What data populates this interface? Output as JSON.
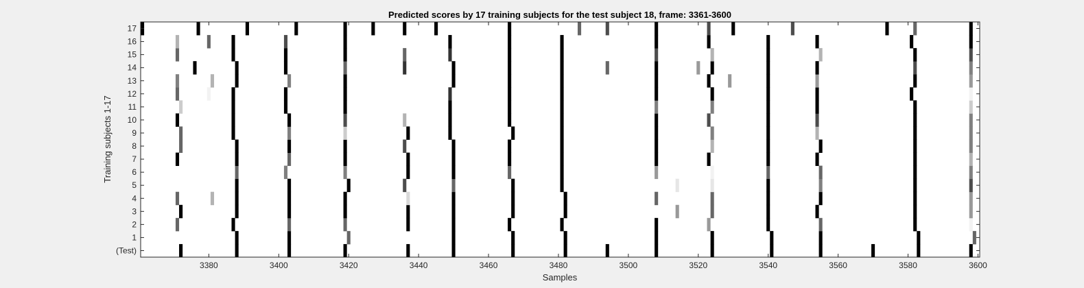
{
  "chart_data": {
    "type": "heatmap",
    "title": "Predicted scores by 17 training subjects for the test subject 18, frame: 3361-3600",
    "xlabel": "Samples",
    "ylabel": "Training subjects 1-17",
    "xlim": [
      3361,
      3600
    ],
    "x_ticks": [
      3380,
      3400,
      3420,
      3440,
      3460,
      3480,
      3500,
      3520,
      3540,
      3560,
      3580,
      3600
    ],
    "rows": [
      "(Test)",
      "1",
      "2",
      "3",
      "4",
      "5",
      "6",
      "7",
      "8",
      "9",
      "10",
      "11",
      "12",
      "13",
      "14",
      "15",
      "16",
      "17"
    ],
    "colormap": "gray",
    "background": "#ffffff",
    "note_value_scale": "0 = white, 1 = black",
    "cells": [
      {
        "row": "(Test)",
        "marks": [
          [
            3372,
            1
          ],
          [
            3388,
            1
          ],
          [
            3403,
            1
          ],
          [
            3419,
            1
          ],
          [
            3437,
            1
          ],
          [
            3450,
            1
          ],
          [
            3467,
            1
          ],
          [
            3482,
            1
          ],
          [
            3494,
            1
          ],
          [
            3508,
            1
          ],
          [
            3524,
            1
          ],
          [
            3541,
            1
          ],
          [
            3555,
            1
          ],
          [
            3570,
            1
          ],
          [
            3583,
            1
          ],
          [
            3598,
            1
          ]
        ]
      },
      {
        "row": "1",
        "marks": [
          [
            3388,
            1
          ],
          [
            3403,
            1
          ],
          [
            3420,
            0.6
          ],
          [
            3450,
            1
          ],
          [
            3467,
            1
          ],
          [
            3482,
            1
          ],
          [
            3508,
            1
          ],
          [
            3524,
            1
          ],
          [
            3541,
            1
          ],
          [
            3555,
            1
          ],
          [
            3583,
            1
          ],
          [
            3599,
            0.6
          ]
        ]
      },
      {
        "row": "2",
        "marks": [
          [
            3371,
            0.6
          ],
          [
            3387,
            1
          ],
          [
            3403,
            0.6
          ],
          [
            3419,
            0.6
          ],
          [
            3437,
            1
          ],
          [
            3450,
            1
          ],
          [
            3466,
            1
          ],
          [
            3481,
            1
          ],
          [
            3508,
            1
          ],
          [
            3523,
            0.4
          ],
          [
            3540,
            1
          ],
          [
            3555,
            0.6
          ],
          [
            3582,
            1
          ],
          [
            3598,
            0.05
          ]
        ]
      },
      {
        "row": "3",
        "marks": [
          [
            3372,
            1
          ],
          [
            3388,
            1
          ],
          [
            3403,
            1
          ],
          [
            3419,
            1
          ],
          [
            3437,
            1
          ],
          [
            3450,
            1
          ],
          [
            3467,
            1
          ],
          [
            3482,
            1
          ],
          [
            3514,
            0.4
          ],
          [
            3524,
            0.6
          ],
          [
            3540,
            1
          ],
          [
            3554,
            1
          ],
          [
            3582,
            1
          ],
          [
            3598,
            0.4
          ]
        ]
      },
      {
        "row": "4",
        "marks": [
          [
            3371,
            0.6
          ],
          [
            3381,
            0.3
          ],
          [
            3388,
            1
          ],
          [
            3403,
            1
          ],
          [
            3419,
            1
          ],
          [
            3437,
            0.15
          ],
          [
            3450,
            1
          ],
          [
            3467,
            1
          ],
          [
            3482,
            1
          ],
          [
            3508,
            0.6
          ],
          [
            3524,
            0.6
          ],
          [
            3540,
            1
          ],
          [
            3555,
            1
          ],
          [
            3582,
            1
          ],
          [
            3598,
            0.4
          ]
        ]
      },
      {
        "row": "5",
        "marks": [
          [
            3388,
            1
          ],
          [
            3403,
            1
          ],
          [
            3420,
            1
          ],
          [
            3436,
            0.7
          ],
          [
            3450,
            0.6
          ],
          [
            3467,
            1
          ],
          [
            3481,
            1
          ],
          [
            3514,
            0.1
          ],
          [
            3524,
            0.1
          ],
          [
            3540,
            1
          ],
          [
            3555,
            0.5
          ],
          [
            3582,
            1
          ],
          [
            3598,
            0.7
          ]
        ]
      },
      {
        "row": "6",
        "marks": [
          [
            3388,
            0.6
          ],
          [
            3402,
            0.5
          ],
          [
            3419,
            0.5
          ],
          [
            3437,
            1
          ],
          [
            3450,
            1
          ],
          [
            3466,
            0.6
          ],
          [
            3481,
            1
          ],
          [
            3508,
            0.4
          ],
          [
            3524,
            0.05
          ],
          [
            3540,
            0.6
          ],
          [
            3555,
            0.6
          ],
          [
            3582,
            1
          ],
          [
            3598,
            0.5
          ]
        ]
      },
      {
        "row": "7",
        "marks": [
          [
            3371,
            1
          ],
          [
            3388,
            1
          ],
          [
            3403,
            0.6
          ],
          [
            3419,
            1
          ],
          [
            3437,
            1
          ],
          [
            3450,
            1
          ],
          [
            3466,
            1
          ],
          [
            3481,
            1
          ],
          [
            3508,
            1
          ],
          [
            3523,
            1
          ],
          [
            3540,
            1
          ],
          [
            3554,
            1
          ],
          [
            3582,
            1
          ],
          [
            3598,
            0.3
          ]
        ]
      },
      {
        "row": "8",
        "marks": [
          [
            3372,
            0.6
          ],
          [
            3388,
            1
          ],
          [
            3403,
            1
          ],
          [
            3419,
            1
          ],
          [
            3436,
            0.7
          ],
          [
            3450,
            1
          ],
          [
            3466,
            1
          ],
          [
            3481,
            1
          ],
          [
            3508,
            1
          ],
          [
            3524,
            0.3
          ],
          [
            3540,
            1
          ],
          [
            3555,
            1
          ],
          [
            3582,
            1
          ],
          [
            3598,
            0.5
          ]
        ]
      },
      {
        "row": "9",
        "marks": [
          [
            3372,
            0.6
          ],
          [
            3387,
            1
          ],
          [
            3403,
            0.5
          ],
          [
            3419,
            0.2
          ],
          [
            3437,
            1
          ],
          [
            3449,
            1
          ],
          [
            3467,
            1
          ],
          [
            3481,
            1
          ],
          [
            3508,
            1
          ],
          [
            3524,
            0.5
          ],
          [
            3540,
            1
          ],
          [
            3554,
            0.3
          ],
          [
            3582,
            1
          ],
          [
            3598,
            0.5
          ]
        ]
      },
      {
        "row": "10",
        "marks": [
          [
            3371,
            1
          ],
          [
            3387,
            1
          ],
          [
            3403,
            1
          ],
          [
            3419,
            0.7
          ],
          [
            3436,
            0.3
          ],
          [
            3449,
            1
          ],
          [
            3466,
            1
          ],
          [
            3481,
            1
          ],
          [
            3508,
            1
          ],
          [
            3523,
            0.7
          ],
          [
            3540,
            1
          ],
          [
            3554,
            0.7
          ],
          [
            3582,
            1
          ],
          [
            3598,
            0.5
          ]
        ]
      },
      {
        "row": "11",
        "marks": [
          [
            3372,
            0.2
          ],
          [
            3387,
            1
          ],
          [
            3402,
            1
          ],
          [
            3419,
            1
          ],
          [
            3449,
            1
          ],
          [
            3466,
            1
          ],
          [
            3481,
            1
          ],
          [
            3508,
            0.5
          ],
          [
            3524,
            0.5
          ],
          [
            3540,
            1
          ],
          [
            3554,
            1
          ],
          [
            3582,
            1
          ],
          [
            3598,
            0.2
          ]
        ]
      },
      {
        "row": "12",
        "marks": [
          [
            3371,
            0.6
          ],
          [
            3380,
            0.05
          ],
          [
            3387,
            1
          ],
          [
            3402,
            1
          ],
          [
            3419,
            1
          ],
          [
            3449,
            0.8
          ],
          [
            3466,
            1
          ],
          [
            3481,
            1
          ],
          [
            3508,
            1
          ],
          [
            3524,
            1
          ],
          [
            3540,
            1
          ],
          [
            3554,
            1
          ],
          [
            3581,
            1
          ],
          [
            3598,
            0.05
          ]
        ]
      },
      {
        "row": "13",
        "marks": [
          [
            3371,
            0.5
          ],
          [
            3381,
            0.3
          ],
          [
            3388,
            1
          ],
          [
            3403,
            0.5
          ],
          [
            3419,
            1
          ],
          [
            3450,
            1
          ],
          [
            3466,
            1
          ],
          [
            3481,
            1
          ],
          [
            3508,
            1
          ],
          [
            3523,
            1
          ],
          [
            3529,
            0.4
          ],
          [
            3540,
            1
          ],
          [
            3554,
            0.4
          ],
          [
            3582,
            1
          ],
          [
            3598,
            0.4
          ]
        ]
      },
      {
        "row": "14",
        "marks": [
          [
            3376,
            1
          ],
          [
            3388,
            1
          ],
          [
            3402,
            1
          ],
          [
            3419,
            0.6
          ],
          [
            3436,
            0.8
          ],
          [
            3450,
            1
          ],
          [
            3466,
            1
          ],
          [
            3481,
            1
          ],
          [
            3494,
            0.6
          ],
          [
            3508,
            1
          ],
          [
            3520,
            0.4
          ],
          [
            3524,
            1
          ],
          [
            3540,
            1
          ],
          [
            3554,
            1
          ],
          [
            3582,
            0.7
          ],
          [
            3598,
            0.5
          ]
        ]
      },
      {
        "row": "15",
        "marks": [
          [
            3371,
            0.6
          ],
          [
            3387,
            1
          ],
          [
            3402,
            1
          ],
          [
            3419,
            1
          ],
          [
            3436,
            0.6
          ],
          [
            3449,
            0.8
          ],
          [
            3466,
            1
          ],
          [
            3481,
            1
          ],
          [
            3508,
            0.7
          ],
          [
            3524,
            0.3
          ],
          [
            3540,
            1
          ],
          [
            3555,
            0.3
          ],
          [
            3582,
            1
          ],
          [
            3598,
            0.7
          ]
        ]
      },
      {
        "row": "16",
        "marks": [
          [
            3371,
            0.3
          ],
          [
            3380,
            0.6
          ],
          [
            3387,
            1
          ],
          [
            3402,
            0.7
          ],
          [
            3419,
            1
          ],
          [
            3449,
            1
          ],
          [
            3466,
            1
          ],
          [
            3481,
            1
          ],
          [
            3508,
            1
          ],
          [
            3523,
            1
          ],
          [
            3540,
            1
          ],
          [
            3554,
            1
          ],
          [
            3581,
            1
          ],
          [
            3598,
            1
          ]
        ]
      },
      {
        "row": "17",
        "marks": [
          [
            3361,
            1
          ],
          [
            3377,
            1
          ],
          [
            3391,
            1
          ],
          [
            3405,
            1
          ],
          [
            3419,
            1
          ],
          [
            3427,
            1
          ],
          [
            3436,
            1
          ],
          [
            3445,
            1
          ],
          [
            3466,
            1
          ],
          [
            3486,
            0.6
          ],
          [
            3494,
            0.7
          ],
          [
            3508,
            1
          ],
          [
            3523,
            0.7
          ],
          [
            3530,
            1
          ],
          [
            3547,
            0.7
          ],
          [
            3574,
            1
          ],
          [
            3582,
            0.6
          ],
          [
            3598,
            1
          ]
        ]
      }
    ]
  }
}
